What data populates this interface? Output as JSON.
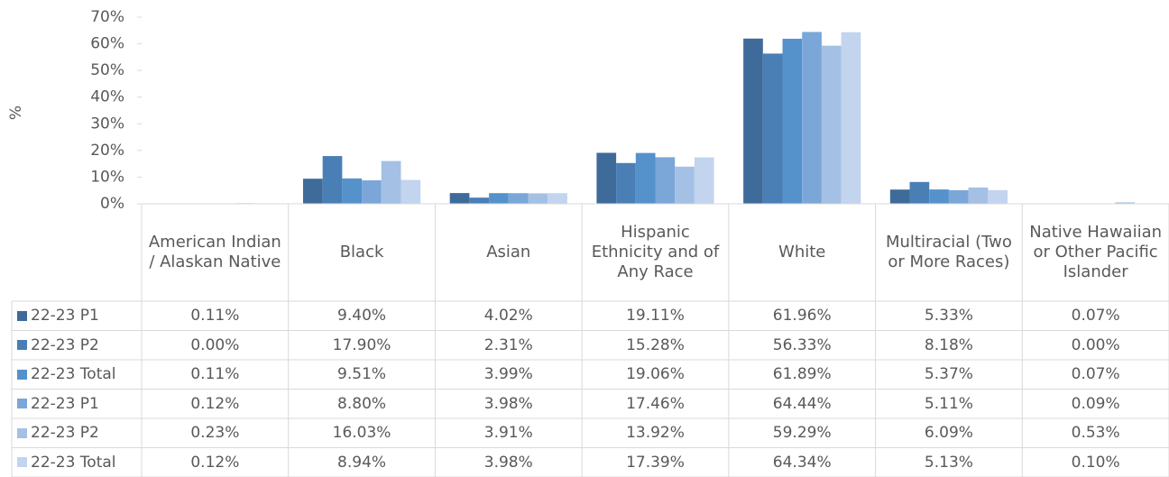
{
  "chart_data": {
    "type": "bar",
    "y_axis_label": "%",
    "categories": [
      "American Indian / Alaskan Native",
      "Black",
      "Asian",
      "Hispanic Ethnicity and of Any Race",
      "White",
      "Multiracial (Two or More Races)",
      "Native Hawaiian or Other Pacific Islander"
    ],
    "ylim": [
      0,
      70
    ],
    "yticks": [
      {
        "value": 0,
        "label": "0%"
      },
      {
        "value": 10,
        "label": "10%"
      },
      {
        "value": 20,
        "label": "20%"
      },
      {
        "value": 30,
        "label": "30%"
      },
      {
        "value": 40,
        "label": "40%"
      },
      {
        "value": 50,
        "label": "50%"
      },
      {
        "value": 60,
        "label": "60%"
      },
      {
        "value": 70,
        "label": "70%"
      }
    ],
    "series": [
      {
        "name": "22-23 P1",
        "color": "#3e6b9a",
        "values": [
          0.11,
          9.4,
          4.02,
          19.11,
          61.96,
          5.33,
          0.07
        ],
        "value_labels": [
          "0.11%",
          "9.40%",
          "4.02%",
          "19.11%",
          "61.96%",
          "5.33%",
          "0.07%"
        ]
      },
      {
        "name": "22-23 P2",
        "color": "#4a7fb5",
        "values": [
          0.0,
          17.9,
          2.31,
          15.28,
          56.33,
          8.18,
          0.0
        ],
        "value_labels": [
          "0.00%",
          "17.90%",
          "2.31%",
          "15.28%",
          "56.33%",
          "8.18%",
          "0.00%"
        ]
      },
      {
        "name": "22-23 Total",
        "color": "#5592cb",
        "values": [
          0.11,
          9.51,
          3.99,
          19.06,
          61.89,
          5.37,
          0.07
        ],
        "value_labels": [
          "0.11%",
          "9.51%",
          "3.99%",
          "19.06%",
          "61.89%",
          "5.37%",
          "0.07%"
        ]
      },
      {
        "name": "22-23 P1",
        "color": "#7aa7d8",
        "values": [
          0.12,
          8.8,
          3.98,
          17.46,
          64.44,
          5.11,
          0.09
        ],
        "value_labels": [
          "0.12%",
          "8.80%",
          "3.98%",
          "17.46%",
          "64.44%",
          "5.11%",
          "0.09%"
        ]
      },
      {
        "name": "22-23 P2",
        "color": "#a4c0e4",
        "values": [
          0.23,
          16.03,
          3.91,
          13.92,
          59.29,
          6.09,
          0.53
        ],
        "value_labels": [
          "0.23%",
          "16.03%",
          "3.91%",
          "13.92%",
          "59.29%",
          "6.09%",
          "0.53%"
        ]
      },
      {
        "name": "22-23 Total",
        "color": "#c2d4ee",
        "values": [
          0.12,
          8.94,
          3.98,
          17.39,
          64.34,
          5.13,
          0.1
        ],
        "value_labels": [
          "0.12%",
          "8.94%",
          "3.98%",
          "17.39%",
          "64.34%",
          "5.13%",
          "0.10%"
        ]
      }
    ]
  }
}
